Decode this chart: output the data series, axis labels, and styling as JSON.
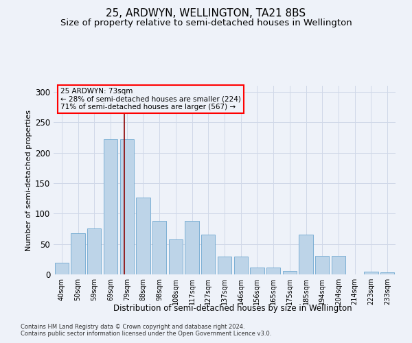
{
  "title": "25, ARDWYN, WELLINGTON, TA21 8BS",
  "subtitle": "Size of property relative to semi-detached houses in Wellington",
  "xlabel": "Distribution of semi-detached houses by size in Wellington",
  "ylabel": "Number of semi-detached properties",
  "categories": [
    "40sqm",
    "50sqm",
    "59sqm",
    "69sqm",
    "79sqm",
    "88sqm",
    "98sqm",
    "108sqm",
    "117sqm",
    "127sqm",
    "137sqm",
    "146sqm",
    "156sqm",
    "165sqm",
    "175sqm",
    "185sqm",
    "194sqm",
    "204sqm",
    "214sqm",
    "223sqm",
    "233sqm"
  ],
  "values": [
    19,
    68,
    75,
    222,
    222,
    126,
    88,
    58,
    88,
    65,
    29,
    29,
    11,
    11,
    6,
    65,
    30,
    30,
    0,
    4,
    3
  ],
  "bar_color": "#bdd4e8",
  "bar_edge_color": "#6fa8d0",
  "grid_color": "#d0d8e8",
  "annotation_text": "25 ARDWYN: 73sqm\n← 28% of semi-detached houses are smaller (224)\n71% of semi-detached houses are larger (567) →",
  "red_line_x": 4.0,
  "ylim": [
    0,
    310
  ],
  "yticks": [
    0,
    50,
    100,
    150,
    200,
    250,
    300
  ],
  "footer1": "Contains HM Land Registry data © Crown copyright and database right 2024.",
  "footer2": "Contains public sector information licensed under the Open Government Licence v3.0.",
  "bg_color": "#eef2f9",
  "title_fontsize": 11,
  "subtitle_fontsize": 9.5
}
